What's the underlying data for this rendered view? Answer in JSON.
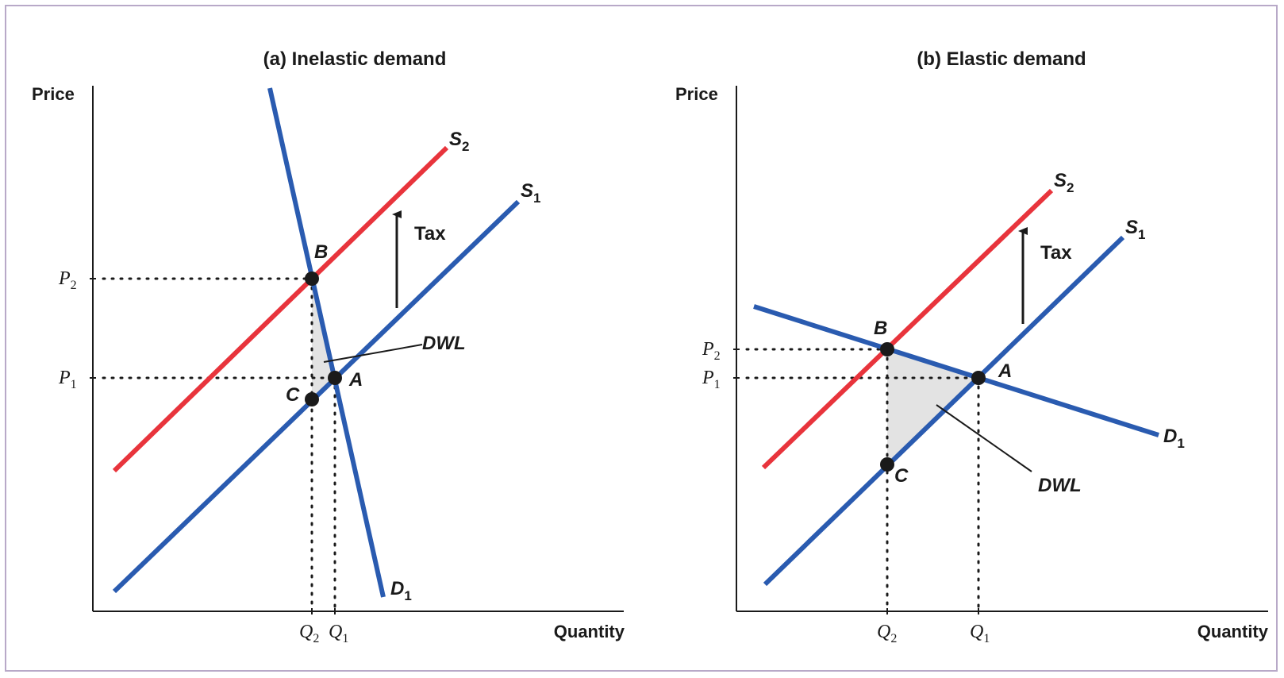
{
  "figure": {
    "colors": {
      "demand": "#2a5bb0",
      "supply_original": "#2a5bb0",
      "supply_taxed": "#e8343c",
      "dwl_fill": "#e3e3e3",
      "text": "#1a1a1a",
      "border": "#b8a9c8"
    },
    "panel_a": {
      "title": "(a) Inelastic demand",
      "y_axis_label": "Price",
      "x_axis_label": "Quantity",
      "p2": {
        "letter": "P",
        "sub": "2"
      },
      "p1": {
        "letter": "P",
        "sub": "1"
      },
      "q2": {
        "letter": "Q",
        "sub": "2"
      },
      "q1": {
        "letter": "Q",
        "sub": "1"
      },
      "s2": {
        "letter": "S",
        "sub": "2"
      },
      "s1": {
        "letter": "S",
        "sub": "1"
      },
      "d1": {
        "letter": "D",
        "sub": "1"
      },
      "tax_label": "Tax",
      "dwl_label": "DWL",
      "point_a": "A",
      "point_b": "B",
      "point_c": "C"
    },
    "panel_b": {
      "title": "(b) Elastic demand",
      "y_axis_label": "Price",
      "x_axis_label": "Quantity",
      "p2": {
        "letter": "P",
        "sub": "2"
      },
      "p1": {
        "letter": "P",
        "sub": "1"
      },
      "q2": {
        "letter": "Q",
        "sub": "2"
      },
      "q1": {
        "letter": "Q",
        "sub": "1"
      },
      "s2": {
        "letter": "S",
        "sub": "2"
      },
      "s1": {
        "letter": "S",
        "sub": "1"
      },
      "d1": {
        "letter": "D",
        "sub": "1"
      },
      "tax_label": "Tax",
      "dwl_label": "DWL",
      "point_a": "A",
      "point_b": "B",
      "point_c": "C"
    }
  }
}
